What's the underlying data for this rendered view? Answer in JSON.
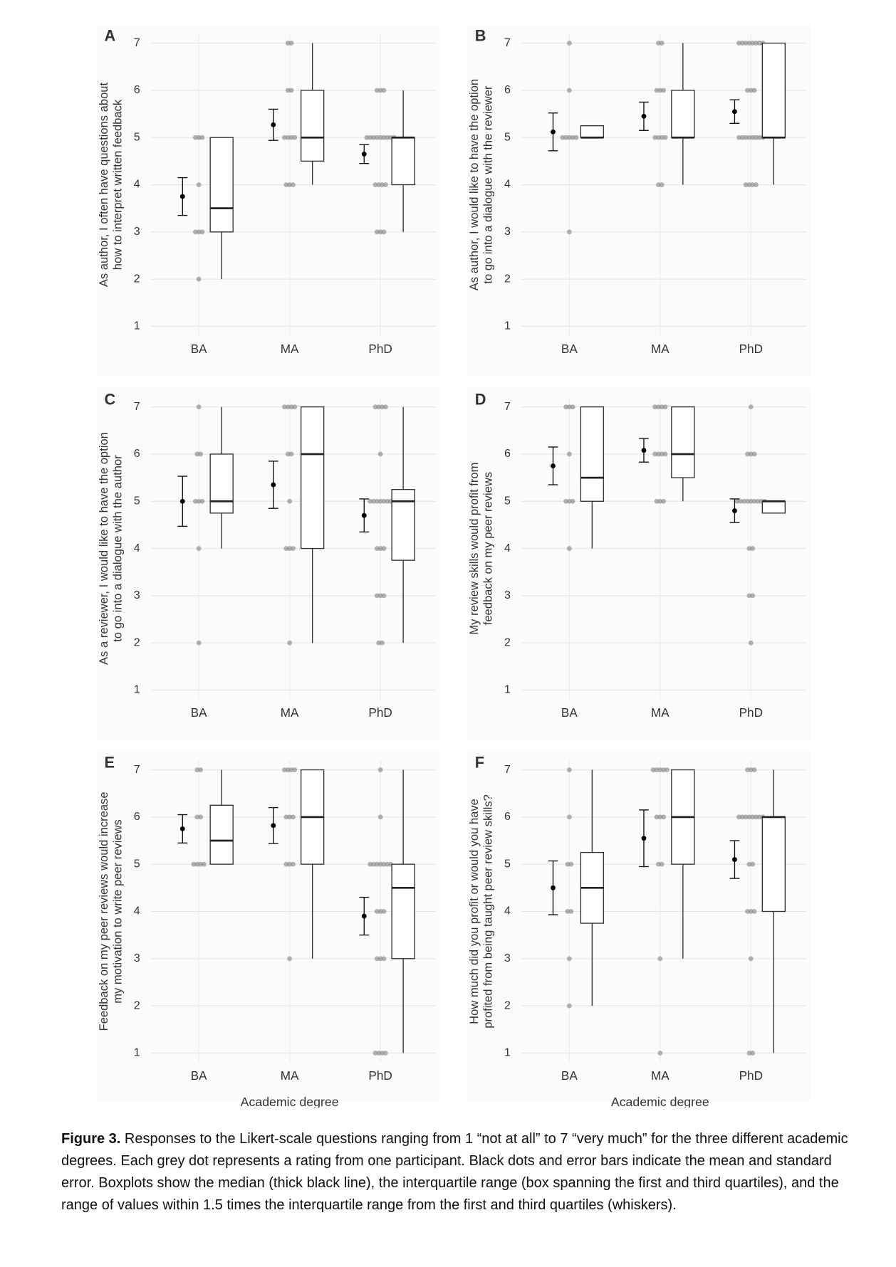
{
  "chart_data": [
    {
      "type": "box",
      "label": "A",
      "ylabel": [
        "As author, I often have questions about",
        "how to interpret written feedback"
      ],
      "categories": [
        "BA",
        "MA",
        "PhD"
      ],
      "ylim": [
        0.8,
        7.2
      ],
      "yticks": [
        1,
        2,
        3,
        4,
        5,
        6,
        7
      ],
      "grid": true,
      "points": [
        [
          5,
          5,
          5,
          4,
          3,
          3,
          3,
          2
        ],
        [
          7,
          7,
          6,
          6,
          5,
          5,
          5,
          5,
          4,
          4,
          4
        ],
        [
          6,
          6,
          6,
          5,
          5,
          5,
          5,
          5,
          5,
          5,
          5,
          5,
          4,
          4,
          4,
          4,
          3,
          3,
          3
        ]
      ],
      "means": [
        3.75,
        5.27,
        4.65
      ],
      "se": [
        0.4,
        0.33,
        0.2
      ],
      "boxes": [
        {
          "low": 2,
          "q1": 3,
          "median": 3.5,
          "q3": 5,
          "high": 5
        },
        {
          "low": 4,
          "q1": 4.5,
          "median": 5,
          "q3": 6,
          "high": 7
        },
        {
          "low": 3,
          "q1": 4,
          "median": 5,
          "q3": 5,
          "high": 6
        }
      ]
    },
    {
      "type": "box",
      "label": "B",
      "ylabel": [
        "As author, I would like to have the option",
        "to go into a dialogue with the reviewer"
      ],
      "categories": [
        "BA",
        "MA",
        "PhD"
      ],
      "ylim": [
        0.8,
        7.2
      ],
      "yticks": [
        1,
        2,
        3,
        4,
        5,
        6,
        7
      ],
      "grid": true,
      "points": [
        [
          7,
          6,
          5,
          5,
          5,
          5,
          5,
          3
        ],
        [
          7,
          7,
          6,
          6,
          6,
          5,
          5,
          5,
          5,
          4,
          4
        ],
        [
          7,
          7,
          7,
          7,
          7,
          7,
          7,
          7,
          6,
          6,
          6,
          5,
          5,
          5,
          5,
          5,
          5,
          5,
          5,
          4,
          4,
          4,
          4
        ]
      ],
      "means": [
        5.12,
        5.45,
        5.55
      ],
      "se": [
        0.4,
        0.3,
        0.25
      ],
      "boxes": [
        {
          "low": 5,
          "q1": 5,
          "median": 5,
          "q3": 5.25,
          "high": 5.25
        },
        {
          "low": 4,
          "q1": 5,
          "median": 5,
          "q3": 6,
          "high": 7
        },
        {
          "low": 4,
          "q1": 5,
          "median": 5,
          "q3": 7,
          "high": 7
        }
      ]
    },
    {
      "type": "box",
      "label": "C",
      "ylabel": [
        "As a reviewer, I would like to have the option",
        "to go into a dialogue with the author"
      ],
      "categories": [
        "BA",
        "MA",
        "PhD"
      ],
      "ylim": [
        0.8,
        7.2
      ],
      "yticks": [
        1,
        2,
        3,
        4,
        5,
        6,
        7
      ],
      "grid": true,
      "points": [
        [
          7,
          6,
          6,
          5,
          5,
          5,
          4,
          2
        ],
        [
          7,
          7,
          7,
          7,
          6,
          6,
          5,
          4,
          4,
          4,
          2
        ],
        [
          7,
          7,
          7,
          7,
          6,
          5,
          5,
          5,
          5,
          5,
          5,
          5,
          4,
          4,
          4,
          3,
          3,
          3,
          2,
          2
        ]
      ],
      "means": [
        5,
        5.35,
        4.7
      ],
      "se": [
        0.53,
        0.5,
        0.35
      ],
      "boxes": [
        {
          "low": 4,
          "q1": 4.75,
          "median": 5,
          "q3": 6,
          "high": 7
        },
        {
          "low": 2,
          "q1": 4,
          "median": 6,
          "q3": 7,
          "high": 7
        },
        {
          "low": 2,
          "q1": 3.75,
          "median": 5,
          "q3": 5.25,
          "high": 7
        }
      ]
    },
    {
      "type": "box",
      "label": "D",
      "ylabel": [
        "My review skills would profit from",
        "feedback on my peer reviews"
      ],
      "categories": [
        "BA",
        "MA",
        "PhD"
      ],
      "ylim": [
        0.8,
        7.2
      ],
      "yticks": [
        1,
        2,
        3,
        4,
        5,
        6,
        7
      ],
      "grid": true,
      "points": [
        [
          7,
          7,
          7,
          6,
          5,
          5,
          5,
          4
        ],
        [
          7,
          7,
          7,
          7,
          6,
          6,
          6,
          6,
          5,
          5,
          5
        ],
        [
          7,
          6,
          6,
          6,
          5,
          5,
          5,
          5,
          5,
          5,
          5,
          5,
          5,
          4,
          4,
          3,
          3,
          2
        ]
      ],
      "means": [
        5.75,
        6.08,
        4.8
      ],
      "se": [
        0.4,
        0.25,
        0.25
      ],
      "boxes": [
        {
          "low": 4,
          "q1": 5,
          "median": 5.5,
          "q3": 7,
          "high": 7
        },
        {
          "low": 5,
          "q1": 5.5,
          "median": 6,
          "q3": 7,
          "high": 7
        },
        {
          "low": 4.75,
          "q1": 4.75,
          "median": 5,
          "q3": 5,
          "high": 5
        }
      ]
    },
    {
      "type": "box",
      "label": "E",
      "ylabel": [
        "Feedback on my peer reviews would increase",
        "my motivation to write peer reviews"
      ],
      "xlabel": "Academic degree",
      "categories": [
        "BA",
        "MA",
        "PhD"
      ],
      "ylim": [
        0.8,
        7.2
      ],
      "yticks": [
        1,
        2,
        3,
        4,
        5,
        6,
        7
      ],
      "grid": true,
      "points": [
        [
          7,
          7,
          6,
          6,
          5,
          5,
          5,
          5
        ],
        [
          7,
          7,
          7,
          7,
          6,
          6,
          6,
          5,
          5,
          5,
          3
        ],
        [
          7,
          6,
          5,
          5,
          5,
          5,
          5,
          5,
          5,
          4,
          4,
          4,
          3,
          3,
          3,
          1,
          1,
          1,
          1
        ]
      ],
      "means": [
        5.75,
        5.82,
        3.9
      ],
      "se": [
        0.3,
        0.38,
        0.4
      ],
      "boxes": [
        {
          "low": 5,
          "q1": 5,
          "median": 5.5,
          "q3": 6.25,
          "high": 7
        },
        {
          "low": 3,
          "q1": 5,
          "median": 6,
          "q3": 7,
          "high": 7
        },
        {
          "low": 1,
          "q1": 3,
          "median": 4.5,
          "q3": 5,
          "high": 7
        }
      ]
    },
    {
      "type": "box",
      "label": "F",
      "ylabel": [
        "How much did you profit or would you have",
        "profited from being taught peer review skills?"
      ],
      "xlabel": "Academic degree",
      "categories": [
        "BA",
        "MA",
        "PhD"
      ],
      "ylim": [
        0.8,
        7.2
      ],
      "yticks": [
        1,
        2,
        3,
        4,
        5,
        6,
        7
      ],
      "grid": true,
      "points": [
        [
          7,
          6,
          5,
          5,
          4,
          4,
          3,
          2
        ],
        [
          7,
          7,
          7,
          7,
          7,
          6,
          6,
          6,
          5,
          5,
          3,
          1
        ],
        [
          7,
          7,
          7,
          6,
          6,
          6,
          6,
          6,
          6,
          6,
          6,
          5,
          5,
          4,
          4,
          4,
          3,
          1,
          1
        ]
      ],
      "means": [
        4.5,
        5.55,
        5.1
      ],
      "se": [
        0.57,
        0.6,
        0.4
      ],
      "boxes": [
        {
          "low": 2,
          "q1": 3.75,
          "median": 4.5,
          "q3": 5.25,
          "high": 7
        },
        {
          "low": 3,
          "q1": 5,
          "median": 6,
          "q3": 7,
          "high": 7
        },
        {
          "low": 1,
          "q1": 4,
          "median": 6,
          "q3": 6,
          "high": 7
        }
      ]
    }
  ],
  "caption": {
    "label": "Figure 3.",
    "text": "Responses to the Likert-scale questions ranging from 1 “not at all” to 7 “very much” for the three different academic degrees. Each grey dot represents a rating from one participant. Black dots and error bars indicate the mean and standard error. Boxplots show the median (thick black line), the interquartile range (box spanning the first and third quartiles), and the range of values within 1.5 times the interquartile range from the first and third quartiles (whiskers)."
  }
}
